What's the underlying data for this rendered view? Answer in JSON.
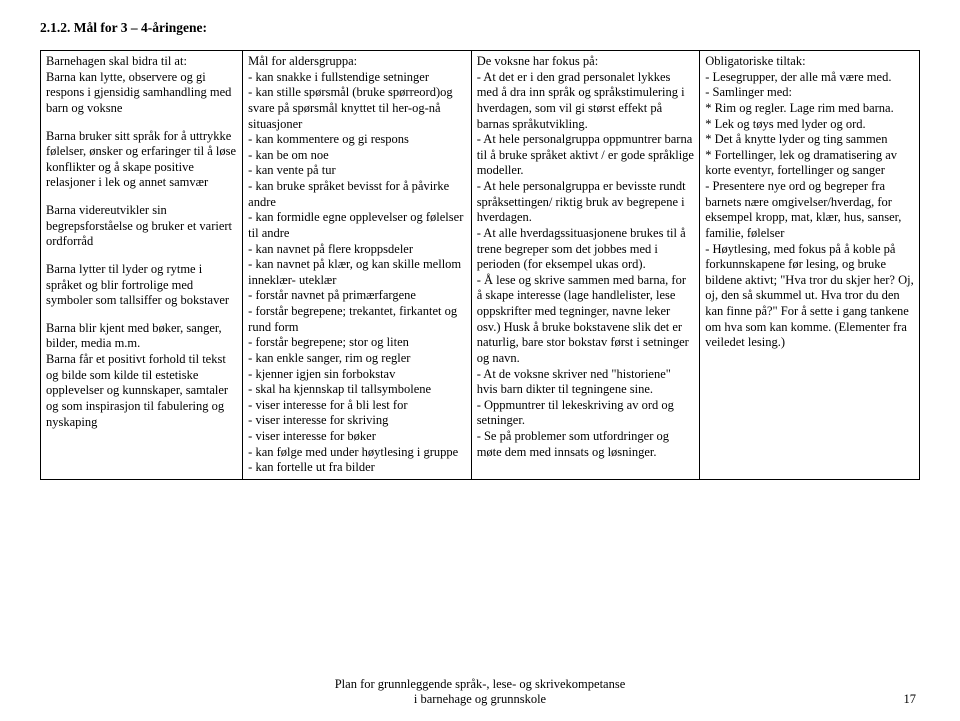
{
  "heading": "2.1.2. Mål for 3 – 4-åringene:",
  "col1": {
    "header": "Barnehagen skal bidra til at:",
    "p1": "Barna kan lytte, observere og gi respons i gjensidig samhandling med barn og voksne",
    "p2": "Barna bruker sitt språk for å uttrykke følelser, ønsker og erfaringer til å løse konflikter og å skape positive relasjoner i lek og annet samvær",
    "p3": "Barna videreutvikler sin begrepsforståelse og bruker et variert ordforråd",
    "p4": "Barna lytter til lyder og rytme i språket og blir fortrolige med symboler som tallsiffer og bokstaver",
    "p5": "Barna blir kjent med bøker, sanger, bilder, media m.m.",
    "p6": "Barna får et positivt forhold til tekst og bilde som kilde til estetiske opplevelser og kunnskaper, samtaler og som inspirasjon til fabulering og nyskaping"
  },
  "col2": {
    "header": "Mål for aldersgruppa:",
    "b1": "- kan snakke i fullstendige setninger",
    "b2": "- kan stille spørsmål (bruke spørreord)og svare på spørsmål knyttet til her-og-nå situasjoner",
    "b3": "- kan kommentere og gi respons",
    "b4": "- kan be om noe",
    "b5": "- kan vente på tur",
    "b6": "- kan bruke språket bevisst for å påvirke andre",
    "b7": "- kan formidle egne opplevelser og følelser til andre",
    "b8": "- kan navnet på flere kroppsdeler",
    "b9": "- kan navnet på klær, og kan skille mellom inneklær- uteklær",
    "b10": "- forstår navnet på primærfargene",
    "b11": "- forstår begrepene; trekantet, firkantet og rund form",
    "b12": " - forstår begrepene; stor og liten",
    "b13": "- kan enkle sanger, rim og regler",
    "b14": "- kjenner igjen sin forbokstav",
    "b15": "- skal ha kjennskap til tallsymbolene",
    "b16": "- viser interesse for å bli lest for",
    "b17": "- viser interesse for skriving",
    "b18": "- viser interesse for bøker",
    "b19": "- kan følge med under høytlesing i gruppe",
    "b20": "- kan fortelle ut fra bilder"
  },
  "col3": {
    "header": "De voksne har fokus på:",
    "b1": "- At det er i den grad personalet lykkes med å dra inn språk og språkstimulering i hverdagen, som vil gi størst effekt på barnas språkutvikling.",
    "b2": "- At hele personalgruppa oppmuntrer barna til å bruke språket aktivt / er gode språklige modeller.",
    "b3": "- At hele personalgruppa er bevisste rundt språksettingen/ riktig bruk av begrepene i hverdagen.",
    "b4": "- At alle hverdagssituasjonene brukes til å trene begreper som det jobbes med i perioden (for eksempel ukas ord).",
    "b5": "- Å lese og skrive sammen med barna, for å skape interesse (lage handlelister, lese oppskrifter med tegninger, navne leker osv.) Husk å bruke bokstavene slik det er naturlig, bare stor bokstav først i setninger og navn.",
    "b6": "- At de voksne skriver ned \"historiene\" hvis barn dikter til tegningene sine.",
    "b7": "- Oppmuntrer til lekeskriving av ord og setninger.",
    "b8": "- Se på problemer som utfordringer og møte dem med innsats og løsninger."
  },
  "col4": {
    "header": "Obligatoriske tiltak:",
    "b1": "- Lesegrupper, der alle må være med.",
    "b2": "- Samlinger med:",
    "b3": "* Rim og regler. Lage rim med barna.",
    "b4": "* Lek og tøys med lyder og ord.",
    "b5": "* Det å knytte lyder og ting sammen",
    "b6": "* Fortellinger, lek og dramatisering av korte eventyr, fortellinger og sanger",
    "b7": "- Presentere nye ord og begreper fra barnets nære omgivelser/hverdag, for eksempel kropp, mat, klær, hus, sanser, familie, følelser",
    "b8": "- Høytlesing, med fokus på å koble på forkunnskapene før lesing, og bruke bildene aktivt; \"Hva tror du skjer her? Oj, oj, den så skummel ut. Hva tror du den kan finne på?\" For å sette i gang tankene om hva som kan komme. (Elementer fra veiledet lesing.)"
  },
  "footer": {
    "line1": "Plan for grunnleggende språk-, lese- og skrivekompetanse",
    "line2": "i barnehage og grunnskole",
    "page": "17"
  }
}
